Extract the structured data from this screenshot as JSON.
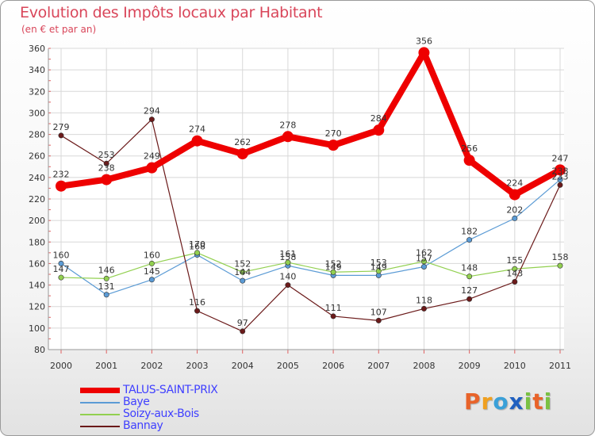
{
  "title": "Evolution des Impôts locaux par Habitant",
  "subtitle": "(en € et par an)",
  "logo": {
    "text": "Proxiti",
    "letters": [
      {
        "ch": "P",
        "color": "#e8632a"
      },
      {
        "ch": "r",
        "color": "#f0a020"
      },
      {
        "ch": "o",
        "color": "#3aa0d8"
      },
      {
        "ch": "x",
        "color": "#2060c0"
      },
      {
        "ch": "i",
        "color": "#7ac143"
      },
      {
        "ch": "t",
        "color": "#e8632a"
      },
      {
        "ch": "i",
        "color": "#7ac143"
      }
    ]
  },
  "chart_data": {
    "type": "line",
    "title": "Evolution des Impôts locaux par Habitant",
    "subtitle": "(en € et par an)",
    "x": [
      "2000",
      "2001",
      "2002",
      "2003",
      "2004",
      "2005",
      "2006",
      "2007",
      "2008",
      "2009",
      "2010",
      "2011"
    ],
    "ylim": [
      80,
      360
    ],
    "yticks": [
      80,
      100,
      120,
      140,
      160,
      180,
      200,
      220,
      240,
      260,
      280,
      300,
      320,
      340,
      360
    ],
    "grid": true,
    "legend_position": "bottom-left",
    "series": [
      {
        "name": "TALUS-SAINT-PRIX",
        "color": "#ee0000",
        "highlight": true,
        "values": [
          232,
          238,
          249,
          274,
          262,
          278,
          270,
          284,
          356,
          256,
          224,
          247
        ]
      },
      {
        "name": "Baye",
        "color": "#5b9bd5",
        "values": [
          160,
          131,
          145,
          168,
          144,
          158,
          149,
          149,
          157,
          182,
          202,
          238
        ]
      },
      {
        "name": "Soizy-aux-Bois",
        "color": "#92d050",
        "values": [
          147,
          146,
          160,
          170,
          152,
          161,
          152,
          153,
          162,
          148,
          155,
          158
        ]
      },
      {
        "name": "Bannay",
        "color": "#6b1a1a",
        "values": [
          279,
          253,
          294,
          116,
          97,
          140,
          111,
          107,
          118,
          127,
          143,
          233
        ]
      }
    ]
  }
}
